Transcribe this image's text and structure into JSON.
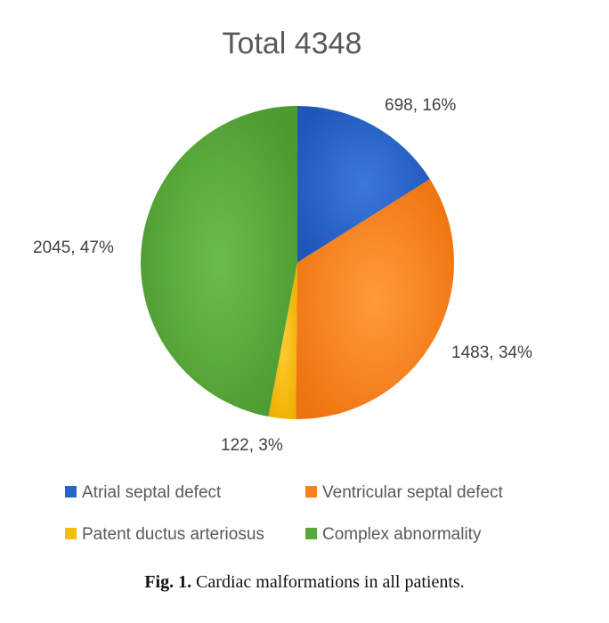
{
  "chart_data": {
    "type": "pie",
    "title": "Total 4348",
    "slices": [
      {
        "name": "Atrial septal defect",
        "value": 698,
        "percent": 16,
        "label": "698, 16%",
        "color": "#2a64c8"
      },
      {
        "name": "Ventricular septal defect",
        "value": 1483,
        "percent": 34,
        "label": "1483, 34%",
        "color": "#f5821e"
      },
      {
        "name": "Patent ductus arteriosus",
        "value": 122,
        "percent": 3,
        "label": "122, 3%",
        "color": "#f6bc0e"
      },
      {
        "name": "Complex abnormality",
        "value": 2045,
        "percent": 47,
        "label": "2045, 47%",
        "color": "#58a83a"
      }
    ],
    "legend_position": "bottom"
  },
  "caption": {
    "fig_label": "Fig. 1.",
    "text": "Cardiac malformations in all patients."
  }
}
